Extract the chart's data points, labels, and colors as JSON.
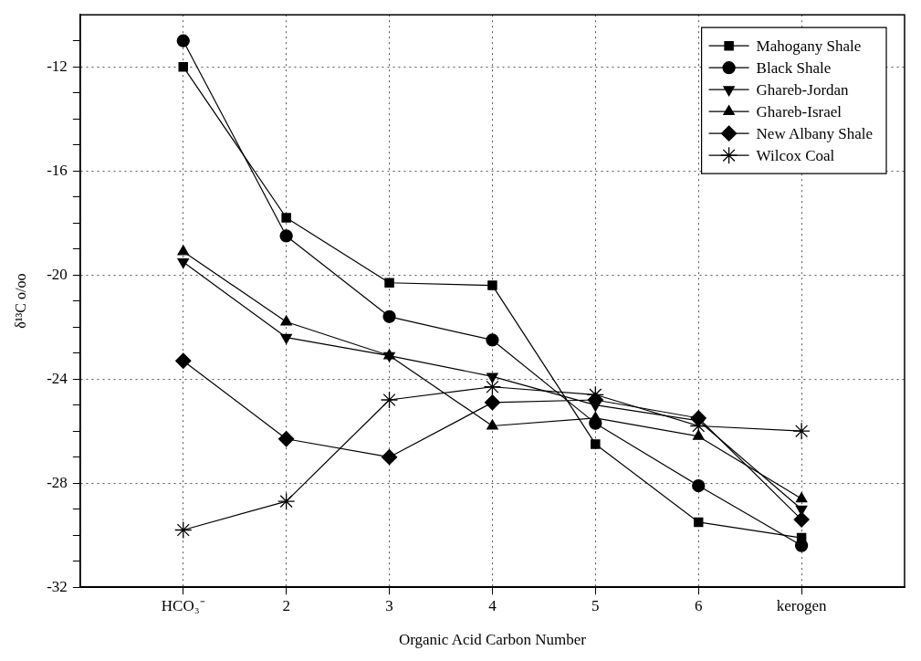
{
  "chart_data": {
    "type": "line",
    "xlabel": "Organic Acid Carbon Number",
    "ylabel": "δ¹³C o/oo",
    "categories": [
      "HCO₃⁻",
      "2",
      "3",
      "4",
      "5",
      "6",
      "kerogen"
    ],
    "series": [
      {
        "name": "Mahogany Shale",
        "color": "#000000",
        "marker": "square",
        "values": [
          -12.0,
          -17.8,
          -20.3,
          -20.4,
          -26.5,
          -29.5,
          -30.1
        ]
      },
      {
        "name": "Black Shale",
        "color": "#000000",
        "marker": "circle",
        "values": [
          -11.0,
          -18.5,
          -21.6,
          -22.5,
          -25.7,
          -28.1,
          -30.4
        ]
      },
      {
        "name": "Ghareb-Jordan",
        "color": "#000000",
        "marker": "triangle-down",
        "values": [
          -19.5,
          -22.4,
          -23.1,
          -23.9,
          -25.0,
          -25.6,
          -29.0
        ]
      },
      {
        "name": "Ghareb-Israel",
        "color": "#000000",
        "marker": "triangle",
        "values": [
          -19.1,
          -21.8,
          -23.1,
          -25.8,
          -25.5,
          -26.2,
          -28.6
        ]
      },
      {
        "name": "New Albany Shale",
        "color": "#000000",
        "marker": "diamond",
        "values": [
          -23.3,
          -26.3,
          -27.0,
          -24.9,
          -24.8,
          -25.5,
          -29.4
        ]
      },
      {
        "name": "Wilcox Coal",
        "color": "#000000",
        "marker": "cross",
        "values": [
          -29.8,
          -28.7,
          -24.8,
          -24.3,
          -24.6,
          -25.8,
          -26.0
        ]
      }
    ],
    "ylim": [
      -32,
      -10
    ],
    "yticks": [
      -32,
      {
        "value": -31,
        "label": null
      },
      {
        "value": -30,
        "label": null
      },
      {
        "value": -29,
        "label": null
      },
      -28,
      {
        "value": -27,
        "label": null
      },
      {
        "value": -26,
        "label": null
      },
      {
        "value": -25,
        "label": null
      },
      -24,
      {
        "value": -23,
        "label": null
      },
      {
        "value": -22,
        "label": null
      },
      {
        "value": -21,
        "label": null
      },
      -20,
      {
        "value": -19,
        "label": null
      },
      {
        "value": -18,
        "label": null
      },
      {
        "value": -17,
        "label": null
      },
      -16,
      {
        "value": -15,
        "label": null
      },
      {
        "value": -14,
        "label": null
      },
      {
        "value": -13,
        "label": null
      },
      -12,
      {
        "value": -11,
        "label": null
      }
    ],
    "grid": true,
    "legend": "top right",
    "line_style": "solid"
  }
}
